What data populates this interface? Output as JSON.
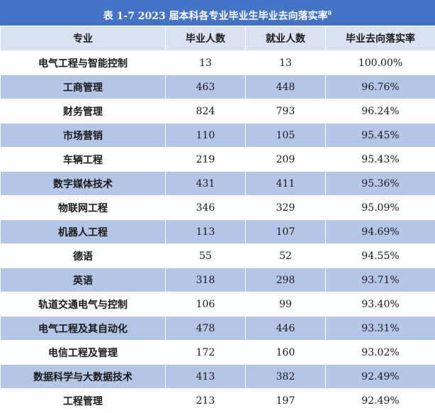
{
  "table_title": "表 1-7   2023 届本科各专业毕业生毕业去向落实率",
  "title_footnote": "8",
  "columns": [
    "专业",
    "毕业人数",
    "就业人数",
    "毕业去向落实率"
  ],
  "rows": [
    {
      "major": "电气工程与智能控制",
      "graduates": "13",
      "employed": "13",
      "rate": "100.00%"
    },
    {
      "major": "工商管理",
      "graduates": "463",
      "employed": "448",
      "rate": "96.76%"
    },
    {
      "major": "财务管理",
      "graduates": "824",
      "employed": "793",
      "rate": "96.24%"
    },
    {
      "major": "市场营销",
      "graduates": "110",
      "employed": "105",
      "rate": "95.45%"
    },
    {
      "major": "车辆工程",
      "graduates": "219",
      "employed": "209",
      "rate": "95.43%"
    },
    {
      "major": "数字媒体技术",
      "graduates": "431",
      "employed": "411",
      "rate": "95.36%"
    },
    {
      "major": "物联网工程",
      "graduates": "346",
      "employed": "329",
      "rate": "95.09%"
    },
    {
      "major": "机器人工程",
      "graduates": "113",
      "employed": "107",
      "rate": "94.69%"
    },
    {
      "major": "德语",
      "graduates": "55",
      "employed": "52",
      "rate": "94.55%"
    },
    {
      "major": "英语",
      "graduates": "318",
      "employed": "298",
      "rate": "93.71%"
    },
    {
      "major": "轨道交通电气与控制",
      "graduates": "106",
      "employed": "99",
      "rate": "93.40%"
    },
    {
      "major": "电气工程及其自动化",
      "graduates": "478",
      "employed": "446",
      "rate": "93.31%"
    },
    {
      "major": "电信工程及管理",
      "graduates": "172",
      "employed": "160",
      "rate": "93.02%"
    },
    {
      "major": "数据科学与大数据技术",
      "graduates": "413",
      "employed": "382",
      "rate": "92.49%"
    },
    {
      "major": "工程管理",
      "graduates": "213",
      "employed": "197",
      "rate": "92.49%"
    }
  ],
  "colors": {
    "title_bg": "#4472c4",
    "header_bg": "#d9e2f3",
    "band_bg": "#b4c6e7"
  }
}
